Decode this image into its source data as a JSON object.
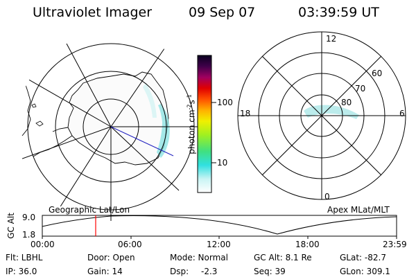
{
  "header": {
    "title": "Ultraviolet Imager",
    "date": "09 Sep 07",
    "time": "03:39:59 UT"
  },
  "colorbar": {
    "label": "photon cm",
    "label_exp1": "-2",
    "label_s": "s",
    "label_exp2": "-1",
    "tick_100": "100",
    "tick_10": "10"
  },
  "polar_plot": {
    "top": "12",
    "left": "18",
    "right": "6",
    "bottom": "0",
    "lat60": "60",
    "lat70": "70",
    "lat80": "80"
  },
  "strip": {
    "left_label": "Geographic Lat/Lon",
    "right_label": "Apex MLat/MLT",
    "yaxis_label": "GC Alt",
    "y_top": "9.0",
    "y_bottom": "1.8",
    "x_ticks": [
      "00:00",
      "06:00",
      "12:00",
      "18:00",
      "23:59"
    ]
  },
  "info": {
    "filter": "Flt: LBHL",
    "door": "Door: Open",
    "mode": "Mode: Normal",
    "gc_alt": "GC Alt: 8.1 Re",
    "glat": "GLat: -82.7",
    "ip": "IP: 36.0",
    "gain": "Gain: 14",
    "dsp_label": "Dsp:",
    "dsp_value": "-2.3",
    "seq": "Seq: 39",
    "glon": "GLon: 309.1"
  },
  "colors": {
    "aurora": "#7fe0e0",
    "marker": "#ff0000",
    "line": "#2020c0"
  }
}
